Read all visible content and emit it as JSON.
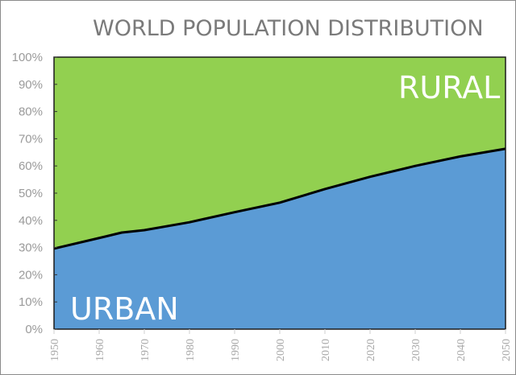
{
  "chart_data": {
    "type": "area",
    "stacked": true,
    "normalized_percent": true,
    "title": "WORLD POPULATION DISTRIBUTION",
    "xlabel": "",
    "ylabel": "",
    "x": [
      1950,
      1960,
      1965,
      1970,
      1980,
      1990,
      2000,
      2010,
      2020,
      2030,
      2040,
      2050
    ],
    "series": [
      {
        "name": "URBAN",
        "color": "#5b9bd5",
        "values": [
          29.6,
          33.5,
          35.5,
          36.4,
          39.3,
          43.0,
          46.5,
          51.5,
          56.0,
          60.0,
          63.5,
          66.3
        ]
      },
      {
        "name": "RURAL",
        "color": "#92d050",
        "values": [
          70.4,
          66.5,
          64.5,
          63.6,
          60.7,
          57.0,
          53.5,
          48.5,
          44.0,
          40.0,
          36.5,
          33.7
        ]
      }
    ],
    "yticks": [
      "0%",
      "10%",
      "20%",
      "30%",
      "40%",
      "50%",
      "60%",
      "70%",
      "80%",
      "90%",
      "100%"
    ],
    "xticks": [
      "1950",
      "1960",
      "1970",
      "1980",
      "1990",
      "2000",
      "2010",
      "2020",
      "2030",
      "2040",
      "2050"
    ],
    "ylim": [
      0,
      100
    ],
    "xlim": [
      1950,
      2050
    ],
    "grid": false,
    "legend": "none (in-area labels)",
    "annotations": [
      {
        "text": "RURAL",
        "position": "upper right, inside green area"
      },
      {
        "text": "URBAN",
        "position": "lower left, inside blue area"
      }
    ],
    "boundary_line_color": "#000000"
  },
  "labels": {
    "title": "WORLD POPULATION DISTRIBUTION",
    "rural": "RURAL",
    "urban": "URBAN"
  }
}
